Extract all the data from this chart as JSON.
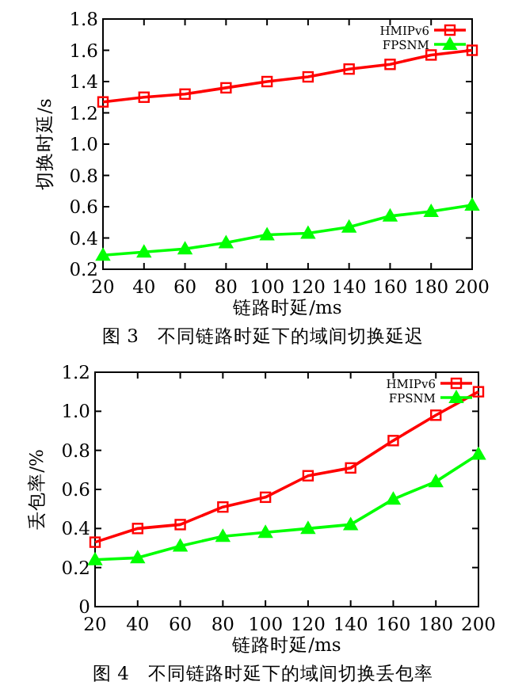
{
  "chart_data": [
    {
      "type": "line",
      "xlabel": "链路时延/ms",
      "ylabel": "切换时延/s",
      "annotations": [
        "图 3　不同链路时延下的域间切换延迟"
      ],
      "x": [
        20,
        40,
        60,
        80,
        100,
        120,
        140,
        160,
        180,
        200
      ],
      "xlim": [
        20,
        200
      ],
      "xticks": [
        20,
        40,
        60,
        80,
        100,
        120,
        140,
        160,
        180,
        200
      ],
      "ylim": [
        0.2,
        1.8
      ],
      "yticks": [
        0.2,
        0.4,
        0.6,
        0.8,
        {
          "value": 1,
          "label": "1.0"
        },
        1.2,
        1.4,
        1.6,
        1.8
      ],
      "legend": "top right",
      "grid": false,
      "line_style": "solid",
      "series": [
        {
          "name": "HMIPv6",
          "color": "#ff0000",
          "marker": "square",
          "values": [
            1.27,
            1.3,
            1.32,
            1.36,
            1.4,
            1.43,
            1.48,
            1.51,
            1.57,
            1.6
          ]
        },
        {
          "name": "FPSNM",
          "color": "#00ff00",
          "marker": "triangle",
          "values": [
            0.29,
            0.31,
            0.33,
            0.37,
            0.42,
            0.43,
            0.47,
            0.54,
            0.57,
            0.61
          ]
        }
      ]
    },
    {
      "type": "line",
      "xlabel": "链路时延/ms",
      "ylabel": "丢包率/%",
      "annotations": [
        "图 4　不同链路时延下的域间切换丢包率"
      ],
      "x": [
        20,
        40,
        60,
        80,
        100,
        120,
        140,
        160,
        180,
        200
      ],
      "xlim": [
        20,
        200
      ],
      "xticks": [
        20,
        40,
        60,
        80,
        100,
        120,
        140,
        160,
        180,
        200
      ],
      "ylim": [
        0,
        1.2
      ],
      "yticks": [
        0,
        0.2,
        0.4,
        0.6,
        0.8,
        {
          "value": 1,
          "label": "1.0"
        },
        1.2
      ],
      "legend": "top right",
      "grid": false,
      "line_style": "solid",
      "series": [
        {
          "name": "HMIPv6",
          "color": "#ff0000",
          "marker": "square",
          "values": [
            0.33,
            0.4,
            0.42,
            0.51,
            0.56,
            0.67,
            0.71,
            0.85,
            0.98,
            1.1
          ]
        },
        {
          "name": "FPSNM",
          "color": "#00ff00",
          "marker": "triangle",
          "values": [
            0.24,
            0.25,
            0.31,
            0.36,
            0.38,
            0.4,
            0.42,
            0.55,
            0.64,
            0.78
          ]
        }
      ]
    }
  ]
}
